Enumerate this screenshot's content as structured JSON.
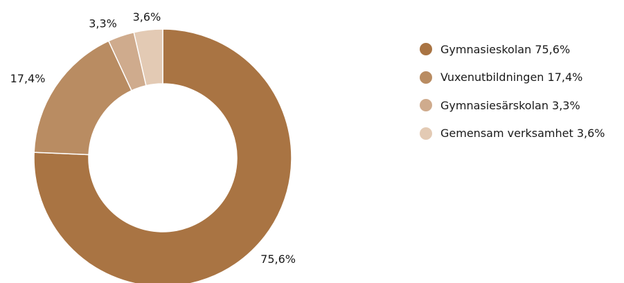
{
  "chart_data": {
    "type": "pie",
    "categories": [
      "Gymnasieskolan",
      "Vuxenutbildningen",
      "Gymnasiesärskolan",
      "Gemensam verksamhet"
    ],
    "values": [
      75.6,
      17.4,
      3.3,
      3.6
    ],
    "value_labels": [
      "75,6%",
      "17,4%",
      "3,3%",
      "3,6%"
    ],
    "legend_labels": [
      "Gymnasieskolan 75,6%",
      "Vuxenutbildningen 17,4%",
      "Gymnasiesärskolan 3,3%",
      "Gemensam verksamhet 3,6%"
    ],
    "colors": [
      "#a97443",
      "#b98c62",
      "#cfab8d",
      "#e3cab4"
    ],
    "legend_position": "right",
    "donut": true
  }
}
